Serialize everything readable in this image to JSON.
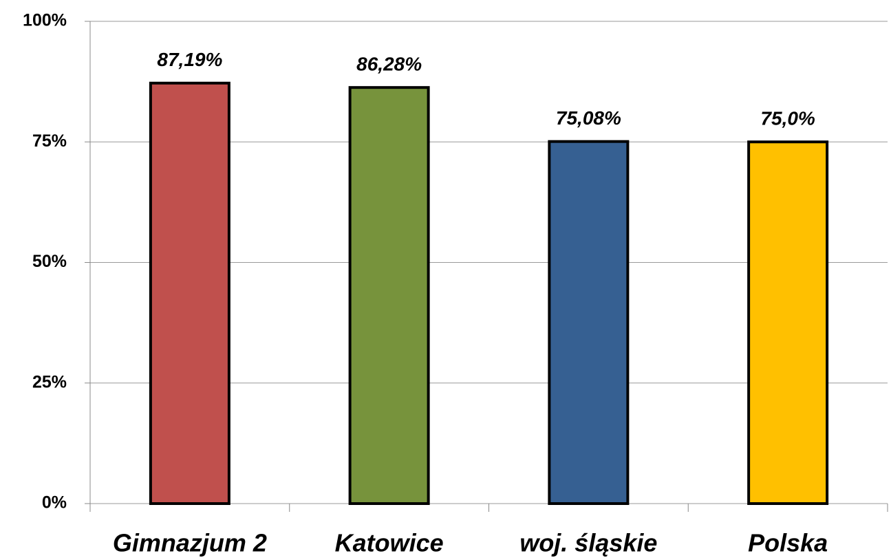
{
  "chart_data": {
    "type": "bar",
    "categories": [
      "Gimnazjum 2",
      "Katowice",
      "woj. śląskie",
      "Polska"
    ],
    "values": [
      87.19,
      86.28,
      75.08,
      75.0
    ],
    "value_labels": [
      "87,19%",
      "86,28%",
      "75,08%",
      "75,0%"
    ],
    "colors": [
      "#c0504d",
      "#77933c",
      "#366092",
      "#ffc000"
    ],
    "ylim": [
      0,
      100
    ],
    "yticks": [
      {
        "value": 0,
        "label": "0%"
      },
      {
        "value": 25,
        "label": "25%"
      },
      {
        "value": 50,
        "label": "50%"
      },
      {
        "value": 75,
        "label": "75%"
      },
      {
        "value": 100,
        "label": "100%"
      }
    ],
    "grid": true
  }
}
